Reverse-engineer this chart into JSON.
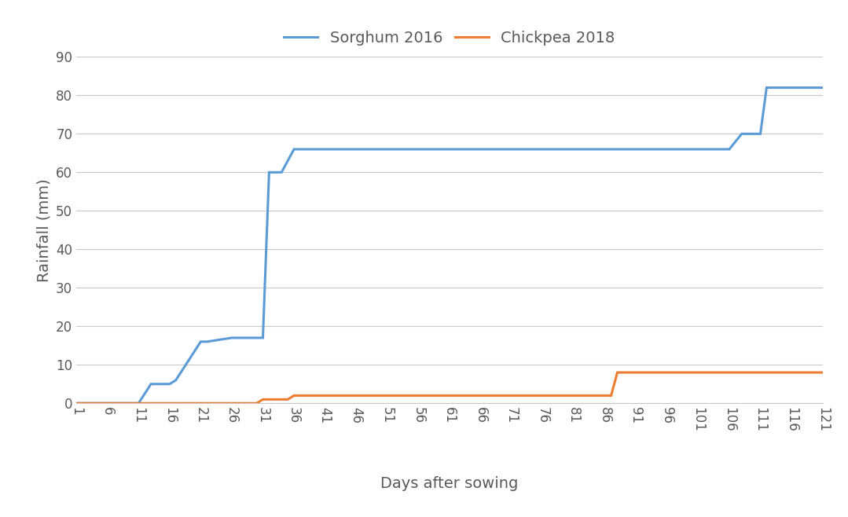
{
  "title": "",
  "xlabel": "Days after sowing",
  "ylabel": "Rainfall (mm)",
  "legend_labels": [
    "Sorghum 2016",
    "Chickpea 2018"
  ],
  "sorghum_x": [
    1,
    11,
    13,
    16,
    17,
    21,
    22,
    26,
    31,
    32,
    34,
    36,
    41,
    106,
    108,
    111,
    112,
    121
  ],
  "sorghum_y": [
    0,
    0,
    5,
    5,
    6,
    16,
    16,
    17,
    17,
    60,
    60,
    66,
    66,
    66,
    70,
    70,
    82,
    82
  ],
  "chickpea_x": [
    1,
    30,
    31,
    35,
    36,
    87,
    88,
    121
  ],
  "chickpea_y": [
    0,
    0,
    1,
    1,
    2,
    2,
    8,
    8
  ],
  "sorghum_color": "#5b9bd5",
  "chickpea_color": "#ed7d31",
  "xlim": [
    1,
    121
  ],
  "ylim": [
    0,
    90
  ],
  "xticks": [
    1,
    6,
    11,
    16,
    21,
    26,
    31,
    36,
    41,
    46,
    51,
    56,
    61,
    66,
    71,
    76,
    81,
    86,
    91,
    96,
    101,
    106,
    111,
    116,
    121
  ],
  "yticks": [
    0,
    10,
    20,
    30,
    40,
    50,
    60,
    70,
    80,
    90
  ],
  "background_color": "#ffffff",
  "grid_color": "#c8c8c8",
  "line_width": 2.2,
  "legend_fontsize": 14,
  "axis_label_fontsize": 14,
  "tick_fontsize": 12,
  "tick_color": "#595959",
  "label_color": "#595959"
}
